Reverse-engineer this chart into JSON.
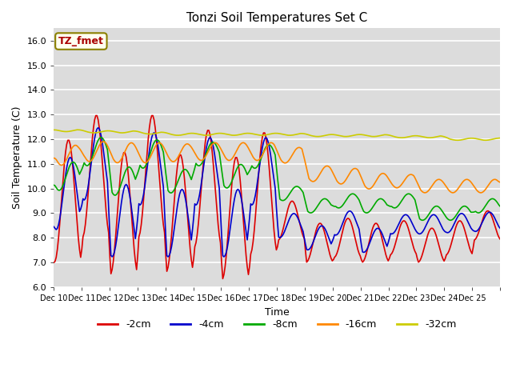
{
  "title": "Tonzi Soil Temperatures Set C",
  "xlabel": "Time",
  "ylabel": "Soil Temperature (C)",
  "ylim": [
    6.0,
    16.5
  ],
  "yticks": [
    6.0,
    7.0,
    8.0,
    9.0,
    10.0,
    11.0,
    12.0,
    13.0,
    14.0,
    15.0,
    16.0
  ],
  "bg_color": "#dcdcdc",
  "legend_label": "TZ_fmet",
  "legend_box_color": "#fffff0",
  "legend_box_edge": "#8B8000",
  "series_colors": {
    "-2cm": "#dd0000",
    "-4cm": "#0000cc",
    "-8cm": "#00aa00",
    "-16cm": "#ff8800",
    "-32cm": "#cccc00"
  },
  "n_days": 16,
  "pts_per_day": 24,
  "x_labels": [
    "Dec 10",
    "Dec 11",
    "Dec 12",
    "Dec 13",
    "Dec 14",
    "Dec 15",
    "Dec 16",
    "Dec 17",
    "Dec 18",
    "Dec 19",
    "Dec 20",
    "Dec 21",
    "Dec 22",
    "Dec 23",
    "Dec 24",
    "Dec 25"
  ]
}
